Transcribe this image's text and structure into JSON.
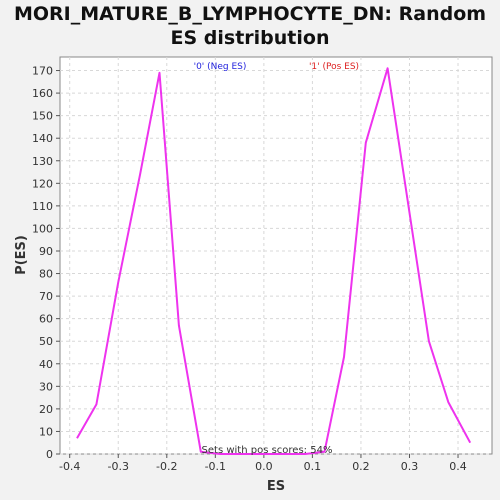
{
  "chart_data": {
    "type": "line",
    "title_line1": "MORI_MATURE_B_LYMPHOCYTE_DN: Random",
    "title_line2": "ES distribution",
    "xlabel": "ES",
    "ylabel": "P(ES)",
    "xlim": [
      -0.42,
      0.47
    ],
    "ylim": [
      0,
      176
    ],
    "xticks": [
      "-0.4",
      "-0.3",
      "-0.2",
      "-0.1",
      "0.0",
      "0.1",
      "0.2",
      "0.3",
      "0.4"
    ],
    "xtick_values": [
      -0.4,
      -0.3,
      -0.2,
      -0.1,
      0.0,
      0.1,
      0.2,
      0.3,
      0.4
    ],
    "yticks": [
      "0",
      "10",
      "20",
      "30",
      "40",
      "50",
      "60",
      "70",
      "80",
      "90",
      "100",
      "110",
      "120",
      "130",
      "140",
      "150",
      "160",
      "170"
    ],
    "ytick_values": [
      0,
      10,
      20,
      30,
      40,
      50,
      60,
      70,
      80,
      90,
      100,
      110,
      120,
      130,
      140,
      150,
      160,
      170
    ],
    "grid": true,
    "series": [
      {
        "color": "#ee33ee",
        "x": [
          -0.385,
          -0.345,
          -0.3,
          -0.255,
          -0.215,
          -0.175,
          -0.13,
          -0.09,
          -0.045,
          0.0,
          0.04,
          0.085,
          0.125,
          0.165,
          0.21,
          0.255,
          0.295,
          0.34,
          0.38,
          0.425
        ],
        "y": [
          7,
          22,
          76,
          124,
          169,
          57,
          1,
          0,
          0,
          0,
          0,
          0,
          1,
          43,
          138,
          171,
          114,
          50,
          23,
          5
        ]
      }
    ],
    "legend": [
      {
        "label": "'0' (Neg ES)",
        "color": "#2222dd"
      },
      {
        "label": "'1' (Pos ES)",
        "color": "#dd2222"
      }
    ],
    "annotation": "Sets with pos scores: 54%"
  }
}
